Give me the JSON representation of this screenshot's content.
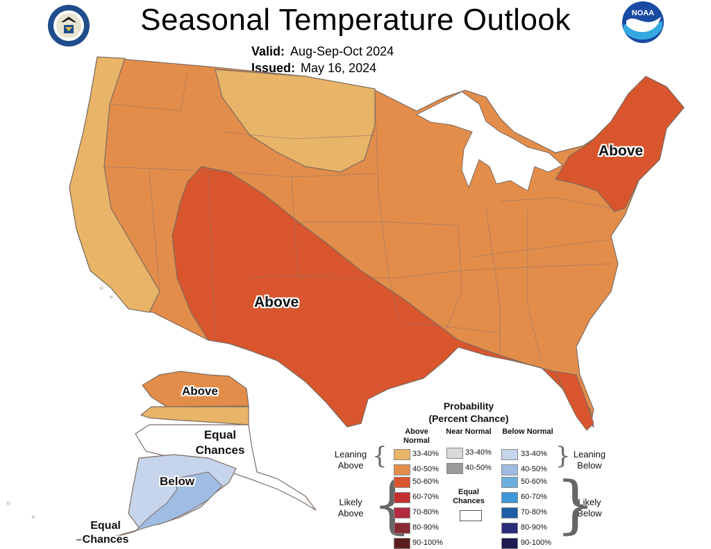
{
  "header": {
    "title": "Seasonal Temperature Outlook",
    "valid_label": "Valid:",
    "valid_value": "Aug-Sep-Oct 2024",
    "issued_label": "Issued:",
    "issued_value": "May 16, 2024"
  },
  "logos": {
    "left": "commerce-seal",
    "right": "NOAA"
  },
  "map_labels": {
    "northeast": "Above",
    "southwest": "Above",
    "alaska_north": "Above",
    "alaska_equal": "Equal Chances",
    "alaska_below": "Below",
    "alaska_equal_sw": "Equal Chances"
  },
  "legend": {
    "title": "Probability",
    "subtitle": "(Percent Chance)",
    "col_above": "Above Normal",
    "col_near": "Near Normal",
    "col_below": "Below Normal",
    "leaning_above": "Leaning Above",
    "leaning_below": "Leaning Below",
    "likely_above": "Likely Above",
    "likely_below": "Likely Below",
    "equal_chances": "Equal Chances",
    "above_items": [
      {
        "label": "33-40%",
        "color": "#e8b468"
      },
      {
        "label": "40-50%",
        "color": "#e38d4a"
      },
      {
        "label": "50-60%",
        "color": "#d9552d"
      },
      {
        "label": "60-70%",
        "color": "#c62f2f"
      },
      {
        "label": "70-80%",
        "color": "#b42a40"
      },
      {
        "label": "80-90%",
        "color": "#8a2a34"
      },
      {
        "label": "90-100%",
        "color": "#5c1f1f"
      }
    ],
    "near_items": [
      {
        "label": "33-40%",
        "color": "#d9d9d9"
      },
      {
        "label": "40-50%",
        "color": "#9a9a9a"
      }
    ],
    "below_items": [
      {
        "label": "33-40%",
        "color": "#c6d4ec"
      },
      {
        "label": "40-50%",
        "color": "#9fbde3"
      },
      {
        "label": "50-60%",
        "color": "#6cb0e0"
      },
      {
        "label": "60-70%",
        "color": "#3d97d6"
      },
      {
        "label": "70-80%",
        "color": "#1c5ea8"
      },
      {
        "label": "80-90%",
        "color": "#2b2c7a"
      },
      {
        "label": "90-100%",
        "color": "#1e1b52"
      }
    ]
  }
}
